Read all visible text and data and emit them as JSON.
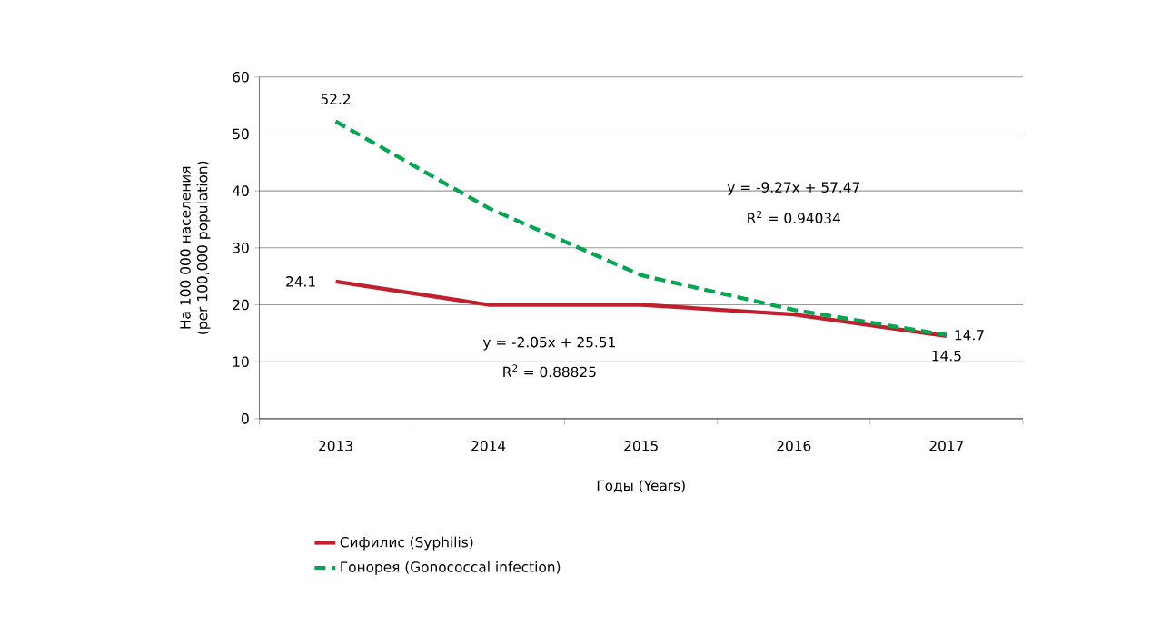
{
  "chart_data": {
    "type": "line",
    "xlabel": "Годы (Years)",
    "ylabel": "На 100 000 населения (per 100,000 population)",
    "categories": [
      "2013",
      "2014",
      "2015",
      "2016",
      "2017"
    ],
    "series": [
      {
        "name": "Сифилис (Syphilis)",
        "color": "#c0202e",
        "line_style": "solid",
        "values": [
          24.1,
          20.0,
          20.0,
          18.3,
          14.5
        ],
        "value_labels": [
          "24.1",
          null,
          null,
          null,
          "14.5"
        ]
      },
      {
        "name": "Гонорея (Gonococcal infection)",
        "color": "#00a650",
        "line_style": "dashed",
        "values": [
          52.2,
          37.0,
          25.2,
          19.1,
          14.7
        ],
        "value_labels": [
          "52.2",
          null,
          null,
          null,
          "14.7"
        ]
      }
    ],
    "ylim": [
      0,
      60
    ],
    "yticks": [
      0,
      10,
      20,
      30,
      40,
      50,
      60
    ],
    "grid": "y",
    "legend": "bottom",
    "annotations": [
      "y = -2.05x + 25.51",
      "R$^{2}$ = 0.88825",
      "y = -9.27x + 57.47",
      "R$^{2}$ = 0.94034"
    ]
  }
}
